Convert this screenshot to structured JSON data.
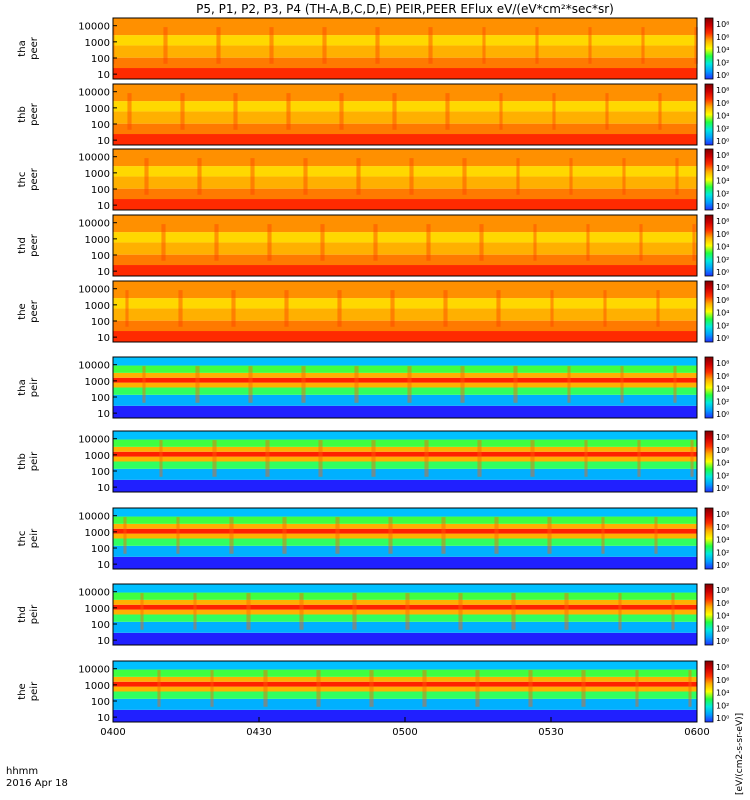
{
  "chart_data": {
    "type": "heatmap",
    "title": "P5, P1, P2, P3, P4 (TH-A,B,C,D,E) PEIR,PEER EFlux eV/(eV*cm²*sec*sr)",
    "colorbar_label": "[eV/(cm2-s-sr-eV)]",
    "colorbar_ticks": [
      "10⁸",
      "10⁶",
      "10⁴",
      "10²",
      "10⁰"
    ],
    "colorscale": [
      "#2030ff",
      "#00a0ff",
      "#00e8e0",
      "#20ff40",
      "#ffff00",
      "#ffb000",
      "#ff3000",
      "#d00000",
      "#800000"
    ],
    "x_axis": {
      "unit_label": "hhmm",
      "date_label": "2016 Apr 18",
      "range": [
        "0400",
        "0600"
      ],
      "tick_labels": [
        "0400",
        "0430",
        "0500",
        "0530",
        "0600"
      ]
    },
    "y_axis_tick_labels": [
      "10000",
      "1000",
      "100",
      "10"
    ],
    "y_scale": "log",
    "panels": [
      {
        "label_top": "tha",
        "label_bottom": "peer",
        "species": "electron",
        "ylim": [
          5,
          30000
        ]
      },
      {
        "label_top": "thb",
        "label_bottom": "peer",
        "species": "electron",
        "ylim": [
          5,
          30000
        ]
      },
      {
        "label_top": "thc",
        "label_bottom": "peer",
        "species": "electron",
        "ylim": [
          5,
          30000
        ]
      },
      {
        "label_top": "thd",
        "label_bottom": "peer",
        "species": "electron",
        "ylim": [
          5,
          30000
        ]
      },
      {
        "label_top": "the",
        "label_bottom": "peer",
        "species": "electron",
        "ylim": [
          5,
          30000
        ]
      },
      {
        "label_top": "tha",
        "label_bottom": "peir",
        "species": "ion",
        "ylim": [
          5,
          30000
        ]
      },
      {
        "label_top": "thb",
        "label_bottom": "peir",
        "species": "ion",
        "ylim": [
          5,
          30000
        ]
      },
      {
        "label_top": "thc",
        "label_bottom": "peir",
        "species": "ion",
        "ylim": [
          5,
          30000
        ]
      },
      {
        "label_top": "thd",
        "label_bottom": "peir",
        "species": "ion",
        "ylim": [
          5,
          30000
        ]
      },
      {
        "label_top": "the",
        "label_bottom": "peir",
        "species": "ion",
        "ylim": [
          5,
          30000
        ]
      }
    ]
  }
}
